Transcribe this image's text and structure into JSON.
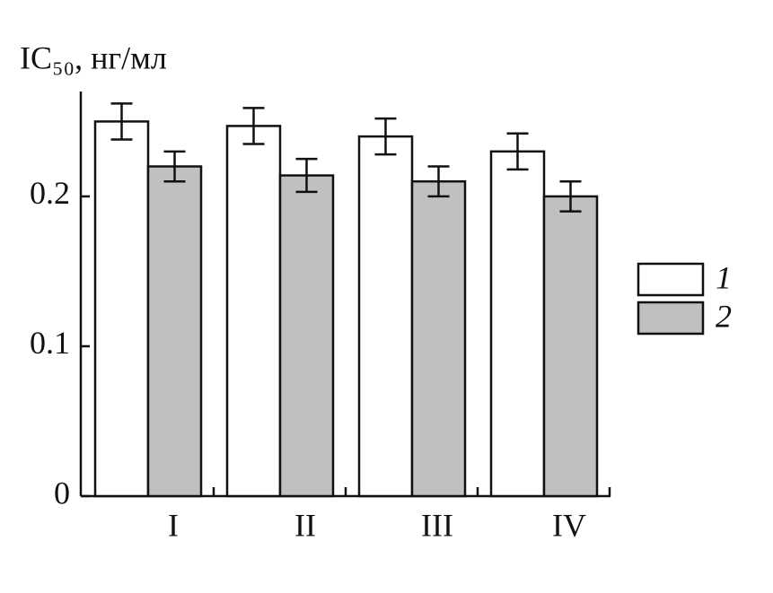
{
  "chart_data": {
    "type": "bar",
    "ylabel": "IC₅₀, нг/мл",
    "categories": [
      "I",
      "II",
      "III",
      "IV"
    ],
    "series": [
      {
        "name": "1",
        "color": "#ffffff",
        "values": [
          0.25,
          0.247,
          0.24,
          0.23
        ],
        "errors": [
          0.012,
          0.012,
          0.012,
          0.012
        ]
      },
      {
        "name": "2",
        "color": "#c0c0c0",
        "values": [
          0.22,
          0.214,
          0.21,
          0.2
        ],
        "errors": [
          0.01,
          0.011,
          0.01,
          0.01
        ]
      }
    ],
    "ylim": [
      0,
      0.27
    ],
    "yticks": [
      0,
      0.1,
      0.2
    ],
    "grid": false,
    "legend": "right"
  }
}
